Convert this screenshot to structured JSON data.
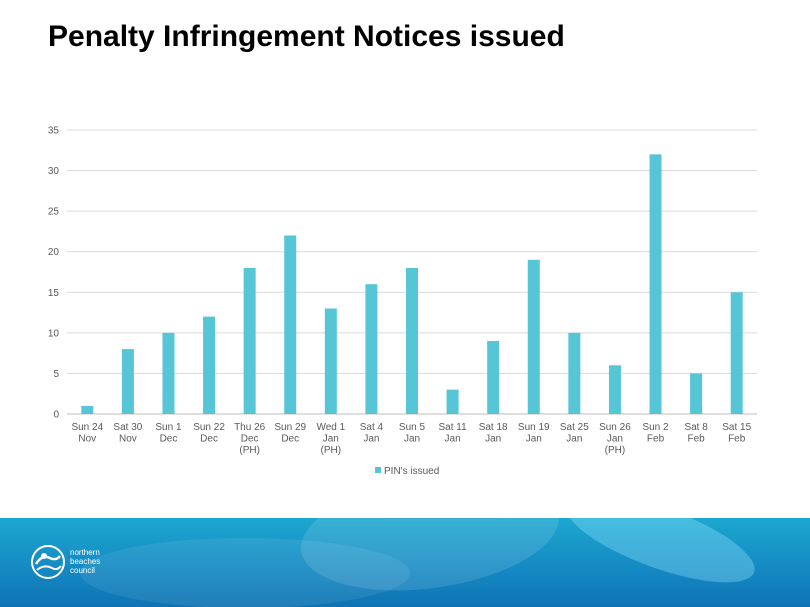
{
  "title": "Penalty Infringement Notices issued",
  "chart_data": {
    "type": "bar",
    "categories": [
      [
        "Sun 24",
        "Nov"
      ],
      [
        "Sat 30",
        "Nov"
      ],
      [
        "Sun 1",
        "Dec"
      ],
      [
        "Sun 22",
        "Dec"
      ],
      [
        "Thu 26",
        "Dec",
        "(PH)"
      ],
      [
        "Sun 29",
        "Dec"
      ],
      [
        "Wed 1",
        "Jan",
        "(PH)"
      ],
      [
        "Sat 4",
        "Jan"
      ],
      [
        "Sun 5",
        "Jan"
      ],
      [
        "Sat 11",
        "Jan"
      ],
      [
        "Sat 18",
        "Jan"
      ],
      [
        "Sun 19",
        "Jan"
      ],
      [
        "Sat 25",
        "Jan"
      ],
      [
        "Sun 26",
        "Jan",
        "(PH)"
      ],
      [
        "Sun 2",
        "Feb"
      ],
      [
        "Sat 8",
        "Feb"
      ],
      [
        "Sat 15",
        "Feb"
      ]
    ],
    "series": [
      {
        "name": "PIN's issued",
        "values": [
          1,
          8,
          10,
          12,
          18,
          22,
          13,
          16,
          18,
          3,
          9,
          19,
          10,
          6,
          32,
          5,
          15
        ]
      }
    ],
    "ylim": [
      0,
      35
    ],
    "yticks": [
      0,
      5,
      10,
      15,
      20,
      25,
      30,
      35
    ],
    "grid": true,
    "legend_position": "bottom",
    "color": "#56c5d6"
  },
  "footer": {
    "logo_lines": [
      "northern",
      "beaches",
      "council"
    ]
  }
}
